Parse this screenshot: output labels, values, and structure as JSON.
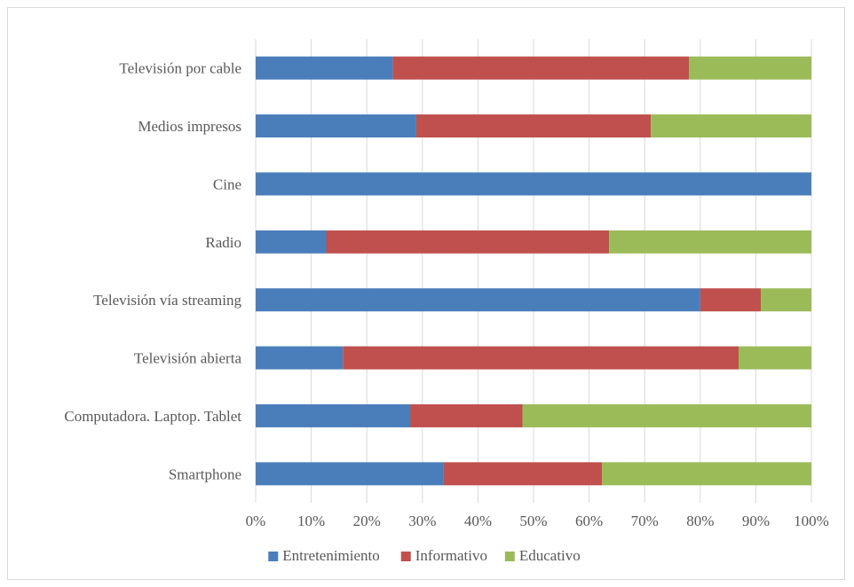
{
  "chart_data": {
    "type": "bar",
    "orientation": "horizontal",
    "stacked": "percent",
    "title": "",
    "xlabel": "",
    "ylabel": "",
    "xlim": [
      0,
      100
    ],
    "grid": "vertical",
    "legend_position": "bottom",
    "x_ticks": [
      "0%",
      "10%",
      "20%",
      "30%",
      "40%",
      "50%",
      "60%",
      "70%",
      "80%",
      "90%",
      "100%"
    ],
    "categories": [
      "Televisión por cable",
      "Medios impresos",
      "Cine",
      "Radio",
      "Televisión vía streaming",
      "Televisión abierta",
      "Computadora. Laptop. Tablet",
      "Smartphone"
    ],
    "series": [
      {
        "name": "Entretenimiento",
        "color": "#4a7ebb",
        "values": [
          24.7,
          28.9,
          100,
          12.7,
          80.0,
          15.7,
          27.8,
          33.8
        ]
      },
      {
        "name": "Informativo",
        "color": "#c0504d",
        "values": [
          53.3,
          42.2,
          0,
          50.9,
          10.9,
          71.2,
          20.2,
          28.5
        ]
      },
      {
        "name": "Educativo",
        "color": "#9bbb59",
        "values": [
          22.0,
          28.9,
          0,
          36.4,
          9.1,
          13.1,
          52.0,
          37.7
        ]
      }
    ]
  }
}
